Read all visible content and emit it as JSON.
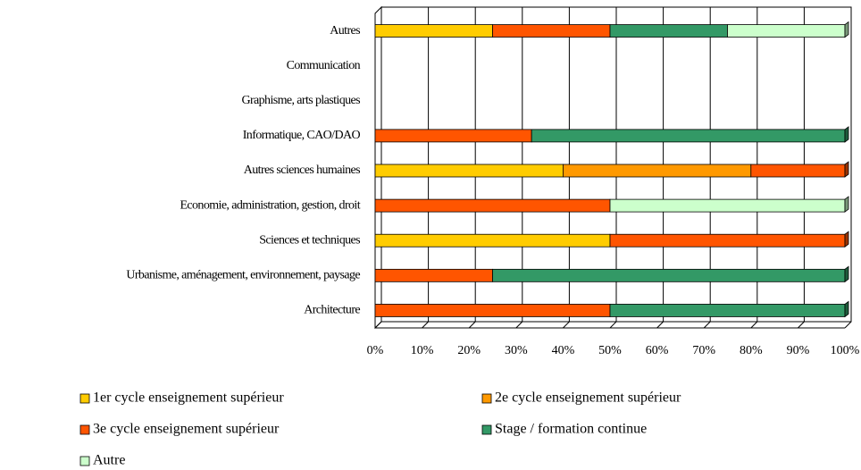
{
  "chart_data": {
    "type": "bar",
    "orientation": "horizontal",
    "stacked": true,
    "categories": [
      "Autres",
      "Communication",
      "Graphisme, arts plastiques",
      "Informatique, CAO/DAO",
      "Autres sciences humaines",
      "Economie, administration, gestion, droit",
      "Sciences et techniques",
      "Urbanisme, aménagement, environnement, paysage",
      "Architecture"
    ],
    "series": [
      {
        "name": "1er cycle enseignement supérieur",
        "color": "#ffcc00",
        "values": [
          25,
          0,
          0,
          0,
          40,
          0,
          50,
          0,
          0
        ]
      },
      {
        "name": "2e cycle enseignement supérieur",
        "color": "#ff9900",
        "values": [
          0,
          0,
          0,
          0,
          40,
          0,
          0,
          0,
          0
        ]
      },
      {
        "name": "3e cycle enseignement supérieur",
        "color": "#ff5500",
        "values": [
          25,
          0,
          0,
          33.3,
          20,
          50,
          50,
          25,
          50
        ]
      },
      {
        "name": "Stage / formation continue",
        "color": "#339966",
        "values": [
          25,
          0,
          0,
          66.7,
          0,
          0,
          0,
          75,
          50
        ]
      },
      {
        "name": "Autre",
        "color": "#ccffcc",
        "values": [
          25,
          0,
          0,
          0,
          0,
          50,
          0,
          0,
          0
        ]
      }
    ],
    "xlim": [
      0,
      100
    ],
    "xticks": [
      {
        "value": 0,
        "label": "0%"
      },
      {
        "value": 10,
        "label": "10%"
      },
      {
        "value": 20,
        "label": "20%"
      },
      {
        "value": 30,
        "label": "30%"
      },
      {
        "value": 40,
        "label": "40%"
      },
      {
        "value": 50,
        "label": "50%"
      },
      {
        "value": 60,
        "label": "60%"
      },
      {
        "value": 70,
        "label": "70%"
      },
      {
        "value": 80,
        "label": "80%"
      },
      {
        "value": 90,
        "label": "90%"
      },
      {
        "value": 100,
        "label": "100%"
      }
    ],
    "grid": true,
    "legend": "bottom"
  }
}
